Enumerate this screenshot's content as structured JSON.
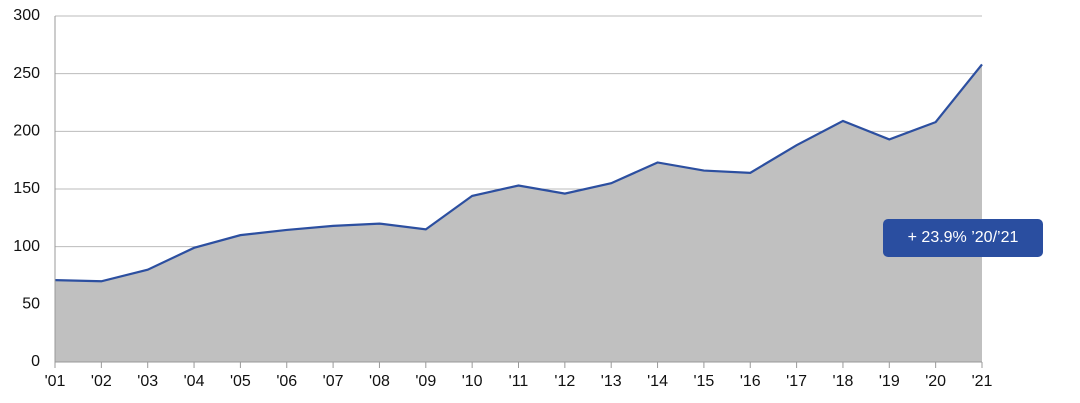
{
  "chart_data": {
    "type": "area",
    "categories": [
      "'01",
      "'02",
      "'03",
      "'04",
      "'05",
      "'06",
      "'07",
      "'08",
      "'09",
      "'10",
      "'11",
      "'12",
      "'13",
      "'14",
      "'15",
      "'16",
      "'17",
      "'18",
      "'19",
      "'20",
      "'21"
    ],
    "values": [
      71,
      70,
      80,
      99,
      110,
      114.5,
      118,
      120,
      115,
      144,
      153,
      146,
      155,
      173,
      166,
      164,
      188,
      209,
      193,
      208,
      258
    ],
    "line_color": "#2c4fa0",
    "fill_color": "#c0c0c0",
    "ylim": [
      0,
      300
    ],
    "yticks": [
      0,
      50,
      100,
      150,
      200,
      250,
      300
    ],
    "grid": true,
    "annotation": "+ 23.9% ’20/’21"
  }
}
